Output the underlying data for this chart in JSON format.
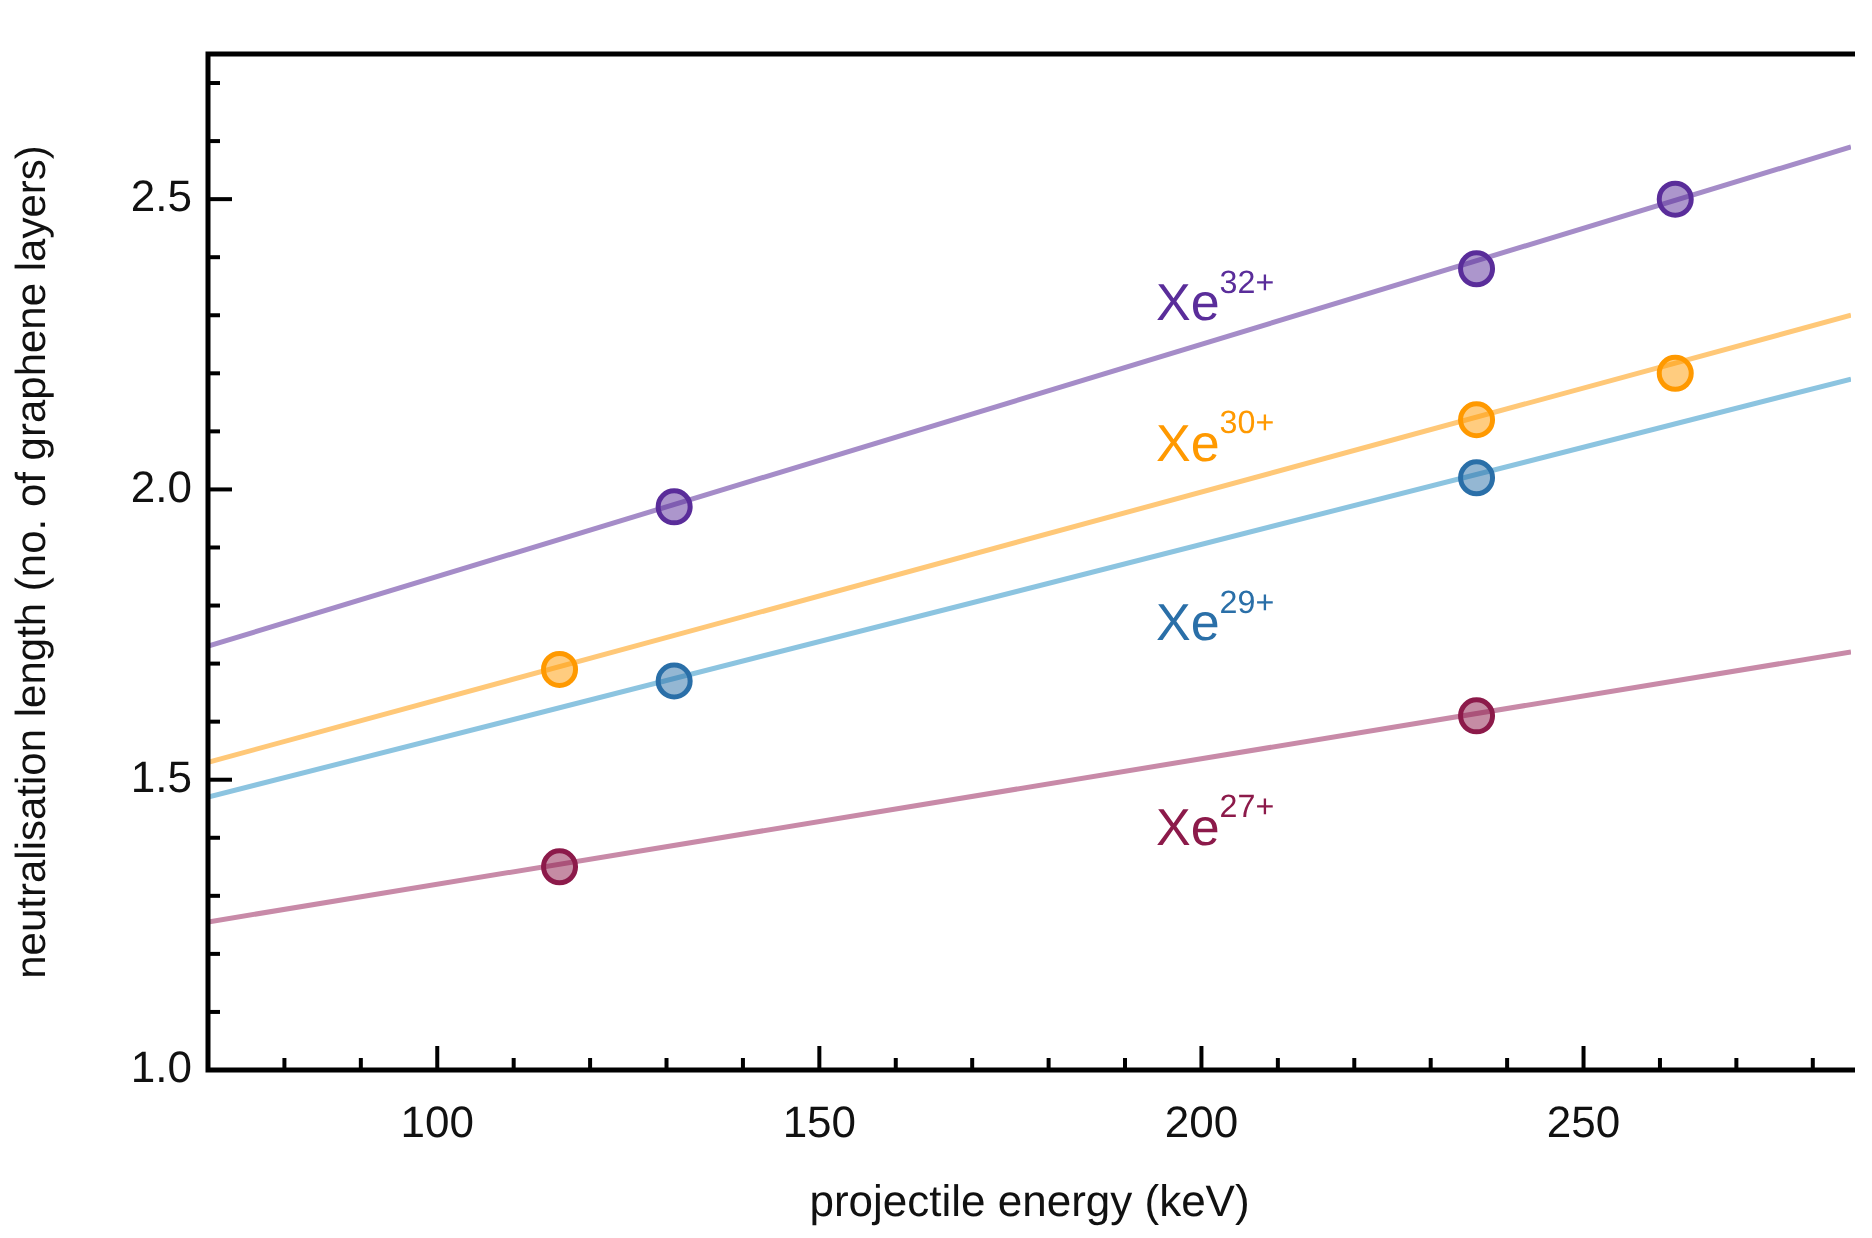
{
  "chart_data": {
    "type": "scatter",
    "xlabel": "projectile energy (keV)",
    "ylabel": "neutralisation length (no. of graphene layers)",
    "xlim": [
      70,
      285
    ],
    "ylim": [
      1.0,
      2.75
    ],
    "xticks": [
      {
        "value": 80,
        "label": null
      },
      {
        "value": 90,
        "label": null
      },
      100,
      {
        "value": 110,
        "label": null
      },
      {
        "value": 120,
        "label": null
      },
      {
        "value": 130,
        "label": null
      },
      {
        "value": 140,
        "label": null
      },
      150,
      {
        "value": 160,
        "label": null
      },
      {
        "value": 170,
        "label": null
      },
      {
        "value": 180,
        "label": null
      },
      {
        "value": 190,
        "label": null
      },
      200,
      {
        "value": 210,
        "label": null
      },
      {
        "value": 220,
        "label": null
      },
      {
        "value": 230,
        "label": null
      },
      {
        "value": 240,
        "label": null
      },
      250,
      {
        "value": 260,
        "label": null
      },
      {
        "value": 270,
        "label": null
      },
      {
        "value": 280,
        "label": null
      }
    ],
    "yticks": [
      {
        "value": 1.0,
        "label": "1.0"
      },
      {
        "value": 1.1,
        "label": null
      },
      {
        "value": 1.2,
        "label": null
      },
      {
        "value": 1.3,
        "label": null
      },
      {
        "value": 1.4,
        "label": null
      },
      1.5,
      {
        "value": 1.6,
        "label": null
      },
      {
        "value": 1.7,
        "label": null
      },
      {
        "value": 1.8,
        "label": null
      },
      {
        "value": 1.9,
        "label": null
      },
      {
        "value": 2.0,
        "label": "2.0"
      },
      {
        "value": 2.1,
        "label": null
      },
      {
        "value": 2.2,
        "label": null
      },
      {
        "value": 2.3,
        "label": null
      },
      {
        "value": 2.4,
        "label": null
      },
      2.5,
      {
        "value": 2.6,
        "label": null
      },
      {
        "value": 2.7,
        "label": null
      }
    ],
    "grid": false,
    "legend": false,
    "marker": "circle",
    "series": [
      {
        "type": "line",
        "color": "#a58cc8",
        "x": [
          70,
          285
        ],
        "values": [
          1.73,
          2.59
        ],
        "marker": "none"
      },
      {
        "type": "line",
        "color": "#ffc878",
        "x": [
          70,
          285
        ],
        "values": [
          1.53,
          2.3
        ],
        "marker": "none"
      },
      {
        "type": "line",
        "color": "#8cc4e0",
        "x": [
          70,
          285
        ],
        "values": [
          1.47,
          2.19
        ],
        "marker": "none"
      },
      {
        "type": "line",
        "color": "#c88aa8",
        "x": [
          70,
          285
        ],
        "values": [
          1.255,
          1.72
        ],
        "marker": "none"
      },
      {
        "name": "Xe$^{32+}$",
        "color": "#5a2d9a",
        "x": [
          131,
          236,
          262
        ],
        "values": [
          1.97,
          2.38,
          2.5
        ]
      },
      {
        "name": "Xe$^{30+}$",
        "color": "#ff9900",
        "x": [
          116,
          236,
          262
        ],
        "values": [
          1.69,
          2.12,
          2.2
        ]
      },
      {
        "name": "Xe$^{29+}$",
        "color": "#2a6fa8",
        "x": [
          131,
          236
        ],
        "values": [
          1.67,
          2.02
        ]
      },
      {
        "name": "Xe$^{27+}$",
        "color": "#8c1a4a",
        "x": [
          116,
          236
        ],
        "values": [
          1.35,
          1.61
        ]
      }
    ]
  }
}
